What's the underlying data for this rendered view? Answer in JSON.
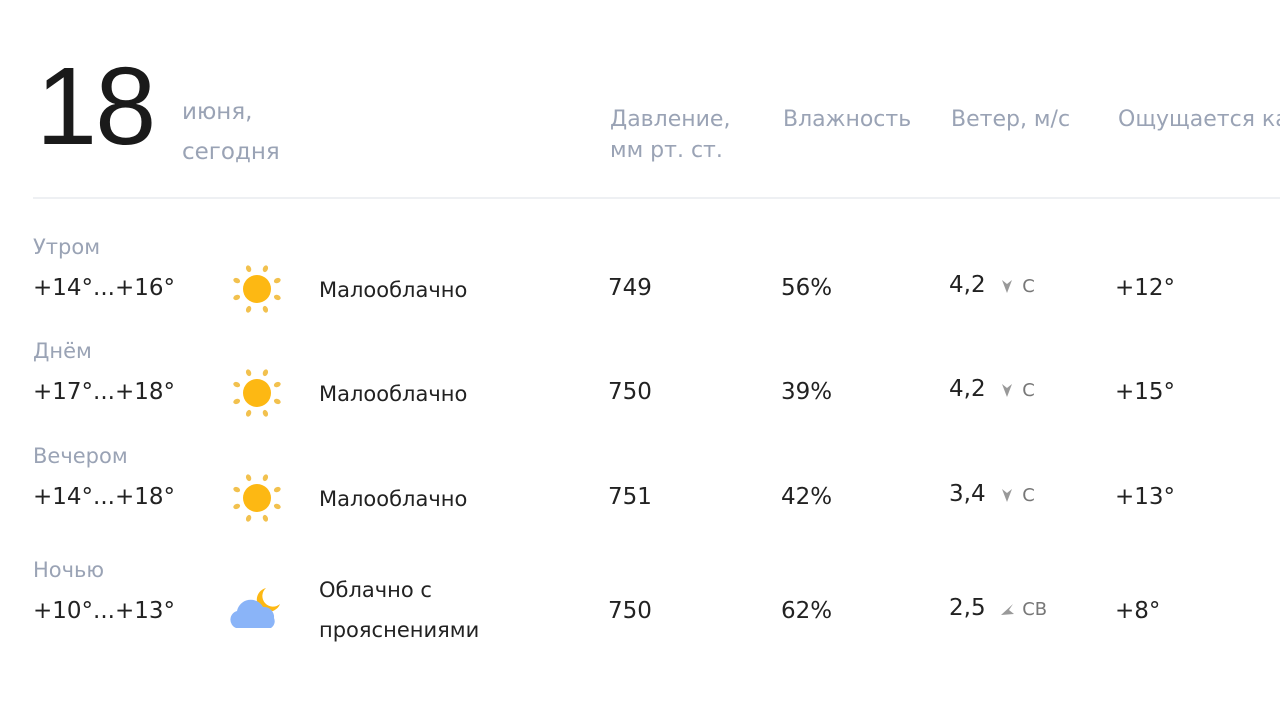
{
  "date": {
    "day": "18",
    "month": "июня,",
    "relative": "сегодня"
  },
  "columns": {
    "pressure_line1": "Давление,",
    "pressure_line2": "мм рт. ст.",
    "humidity": "Влажность",
    "wind": "Ветер, м/с",
    "feels_like": "Ощущается как"
  },
  "rows": [
    {
      "period": "Утром",
      "temp": "+14°...+16°",
      "icon": "sun-icon",
      "condition": "Малооблачно",
      "condition2": "",
      "pressure": "749",
      "humidity": "56%",
      "wind_speed": "4,2",
      "wind_dir": "С",
      "feels": "+12°"
    },
    {
      "period": "Днём",
      "temp": "+17°...+18°",
      "icon": "sun-icon",
      "condition": "Малооблачно",
      "condition2": "",
      "pressure": "750",
      "humidity": "39%",
      "wind_speed": "4,2",
      "wind_dir": "С",
      "feels": "+15°"
    },
    {
      "period": "Вечером",
      "temp": "+14°...+18°",
      "icon": "sun-icon",
      "condition": "Малооблачно",
      "condition2": "",
      "pressure": "751",
      "humidity": "42%",
      "wind_speed": "3,4",
      "wind_dir": "С",
      "feels": "+13°"
    },
    {
      "period": "Ночью",
      "temp": "+10°...+13°",
      "icon": "cloud-moon-icon",
      "condition": "Облачно с",
      "condition2": "прояснениями",
      "pressure": "750",
      "humidity": "62%",
      "wind_speed": "2,5",
      "wind_dir": "СВ",
      "feels": "+8°"
    }
  ],
  "colors": {
    "sun": "#FDB813",
    "cloud": "#8AB4F8",
    "muted": "#9aa3b5"
  }
}
